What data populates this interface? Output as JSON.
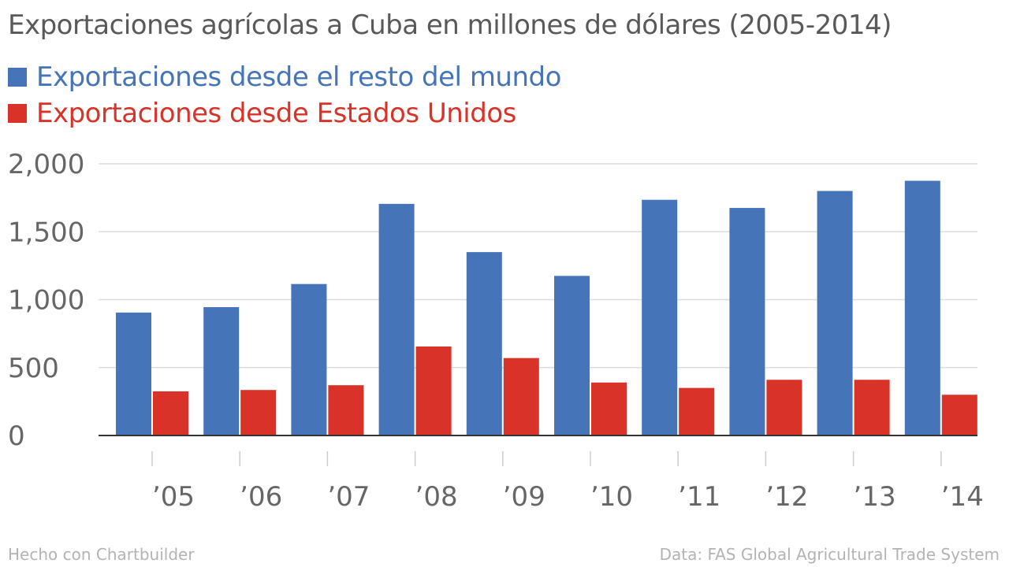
{
  "chart_data": {
    "type": "bar",
    "title": "Exportaciones agrícolas a Cuba en millones de dólares (2005-2014)",
    "categories": [
      "’05",
      "’06",
      "’07",
      "’08",
      "’09",
      "’10",
      "’11",
      "’12",
      "’13",
      "’14"
    ],
    "series": [
      {
        "name": "Exportaciones desde el resto del mundo",
        "color": "#4574b8",
        "values": [
          905,
          945,
          1115,
          1705,
          1350,
          1175,
          1735,
          1675,
          1800,
          1875
        ]
      },
      {
        "name": "Exportaciones desde Estados Unidos",
        "color": "#d93228",
        "values": [
          325,
          335,
          370,
          655,
          570,
          390,
          350,
          410,
          410,
          300
        ]
      }
    ],
    "ylim": [
      0,
      2000
    ],
    "yticks": [
      0,
      500,
      1000,
      1500,
      2000
    ],
    "ytick_labels": [
      "0",
      "500",
      "1,000",
      "1,500",
      "2,000"
    ],
    "grid": true,
    "legend_placement": "top-left",
    "xlabel": "",
    "ylabel": ""
  },
  "footer": {
    "credit": "Hecho con Chartbuilder",
    "source": "Data: FAS Global Agricultural Trade System"
  }
}
